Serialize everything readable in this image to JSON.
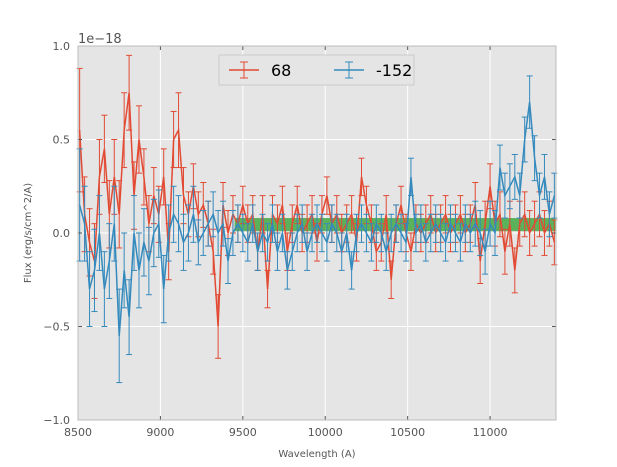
{
  "chart_data": {
    "type": "line",
    "title": "",
    "xlabel": "Wavelength (A)",
    "ylabel": "Flux (erg/s/cm^2/A)",
    "y_offset_label": "1e−18",
    "xlim": [
      8500,
      11400
    ],
    "ylim": [
      -1.0,
      1.0
    ],
    "grid": true,
    "legend_position": "top-center",
    "x_ticks": [
      8500,
      9000,
      9500,
      10000,
      10500,
      11000
    ],
    "x_tick_labels": [
      "8500",
      "9000",
      "9500",
      "10000",
      "10500",
      "11000"
    ],
    "y_ticks": [
      -1.0,
      -0.5,
      0.0,
      0.5,
      1.0
    ],
    "y_tick_labels": [
      "−1.0",
      "−0.5",
      "0.0",
      "0.5",
      "1.0"
    ],
    "band": {
      "x_start": 9450,
      "x_end": 11400,
      "y_low": 0.01,
      "y_high": 0.08,
      "color": "#2ca02c"
    },
    "x": [
      8510,
      8540,
      8570,
      8600,
      8630,
      8660,
      8690,
      8720,
      8750,
      8780,
      8810,
      8840,
      8870,
      8900,
      8930,
      8960,
      8990,
      9020,
      9050,
      9080,
      9110,
      9140,
      9170,
      9200,
      9230,
      9260,
      9290,
      9320,
      9350,
      9380,
      9410,
      9440,
      9470,
      9500,
      9530,
      9560,
      9590,
      9620,
      9650,
      9680,
      9710,
      9740,
      9770,
      9800,
      9830,
      9860,
      9890,
      9920,
      9950,
      9980,
      10010,
      10040,
      10070,
      10100,
      10130,
      10160,
      10190,
      10220,
      10250,
      10280,
      10310,
      10340,
      10370,
      10400,
      10430,
      10460,
      10490,
      10520,
      10550,
      10580,
      10610,
      10640,
      10670,
      10700,
      10730,
      10760,
      10790,
      10820,
      10850,
      10880,
      10910,
      10940,
      10970,
      11000,
      11030,
      11060,
      11090,
      11120,
      11150,
      11180,
      11210,
      11240,
      11270,
      11300,
      11330,
      11360,
      11390
    ],
    "series": [
      {
        "name": "68",
        "color": "#e24a33",
        "values": [
          0.55,
          0.1,
          -0.05,
          -0.15,
          0.3,
          0.45,
          0.1,
          0.3,
          0.1,
          0.55,
          0.75,
          0.2,
          0.5,
          0.3,
          0.05,
          0.2,
          0.1,
          0.3,
          -0.1,
          0.5,
          0.55,
          0.2,
          0.1,
          0.25,
          0.1,
          0.15,
          0.05,
          -0.1,
          -0.5,
          0.15,
          0.0,
          0.1,
          0.05,
          0.15,
          0.05,
          0.1,
          -0.1,
          0.1,
          -0.3,
          0.1,
          0.05,
          0.15,
          -0.1,
          0.05,
          0.15,
          0.0,
          0.05,
          0.1,
          -0.05,
          0.1,
          0.2,
          0.05,
          0.1,
          0.0,
          0.05,
          0.1,
          -0.05,
          0.3,
          0.15,
          0.05,
          -0.1,
          -0.05,
          0.1,
          -0.25,
          0.05,
          0.15,
          0.0,
          -0.1,
          0.05,
          0.0,
          0.05,
          0.1,
          0.0,
          0.05,
          0.1,
          0.0,
          0.05,
          0.1,
          0.0,
          0.05,
          0.15,
          -0.15,
          0.05,
          0.25,
          0.05,
          0.1,
          -0.1,
          0.05,
          -0.2,
          0.05,
          0.1,
          0.0,
          0.05,
          0.1,
          0.0,
          0.05,
          -0.05
        ],
        "errors": [
          0.33,
          0.2,
          0.18,
          0.2,
          0.2,
          0.18,
          0.18,
          0.2,
          0.18,
          0.2,
          0.2,
          0.18,
          0.18,
          0.15,
          0.15,
          0.15,
          0.15,
          0.15,
          0.15,
          0.15,
          0.2,
          0.15,
          0.12,
          0.12,
          0.12,
          0.12,
          0.12,
          0.12,
          0.17,
          0.12,
          0.12,
          0.1,
          0.1,
          0.1,
          0.1,
          0.1,
          0.1,
          0.1,
          0.1,
          0.1,
          0.1,
          0.1,
          0.1,
          0.1,
          0.1,
          0.1,
          0.1,
          0.1,
          0.1,
          0.1,
          0.1,
          0.1,
          0.1,
          0.1,
          0.1,
          0.1,
          0.1,
          0.1,
          0.1,
          0.1,
          0.1,
          0.1,
          0.1,
          0.1,
          0.1,
          0.1,
          0.1,
          0.1,
          0.1,
          0.1,
          0.1,
          0.1,
          0.1,
          0.1,
          0.1,
          0.1,
          0.1,
          0.1,
          0.1,
          0.1,
          0.12,
          0.12,
          0.12,
          0.12,
          0.12,
          0.12,
          0.12,
          0.12,
          0.12,
          0.12,
          0.12,
          0.12,
          0.12,
          0.12,
          0.12,
          0.12,
          0.12
        ]
      },
      {
        "name": "-152",
        "color": "#348abd",
        "values": [
          0.15,
          0.05,
          -0.3,
          -0.2,
          0.0,
          -0.3,
          -0.15,
          0.05,
          -0.55,
          -0.2,
          -0.45,
          0.0,
          -0.2,
          -0.05,
          -0.15,
          0.0,
          0.05,
          -0.3,
          0.0,
          0.1,
          0.05,
          -0.05,
          0.0,
          0.1,
          -0.05,
          0.0,
          0.05,
          0.1,
          0.0,
          0.05,
          -0.15,
          0.0,
          0.05,
          0.0,
          -0.05,
          0.05,
          -0.1,
          0.0,
          -0.05,
          0.05,
          -0.1,
          0.0,
          -0.2,
          -0.1,
          0.0,
          0.05,
          -0.1,
          0.0,
          0.05,
          0.0,
          -0.05,
          0.05,
          0.0,
          -0.1,
          0.0,
          -0.2,
          0.0,
          0.05,
          0.0,
          -0.05,
          0.05,
          0.0,
          -0.1,
          0.0,
          0.05,
          0.0,
          -0.05,
          0.3,
          0.0,
          0.05,
          -0.05,
          0.0,
          0.05,
          0.0,
          -0.05,
          0.05,
          0.0,
          -0.05,
          0.05,
          0.0,
          0.05,
          0.0,
          -0.1,
          0.05,
          0.0,
          0.35,
          0.2,
          0.25,
          0.3,
          0.2,
          0.5,
          0.7,
          0.4,
          0.2,
          0.3,
          0.1,
          0.2
        ],
        "errors": [
          0.3,
          0.2,
          0.2,
          0.22,
          0.2,
          0.2,
          0.2,
          0.2,
          0.25,
          0.2,
          0.2,
          0.2,
          0.2,
          0.18,
          0.18,
          0.18,
          0.18,
          0.18,
          0.15,
          0.15,
          0.15,
          0.15,
          0.15,
          0.15,
          0.12,
          0.12,
          0.12,
          0.12,
          0.12,
          0.12,
          0.12,
          0.12,
          0.1,
          0.1,
          0.1,
          0.1,
          0.1,
          0.1,
          0.1,
          0.1,
          0.1,
          0.1,
          0.1,
          0.1,
          0.1,
          0.1,
          0.1,
          0.1,
          0.1,
          0.1,
          0.1,
          0.1,
          0.1,
          0.1,
          0.1,
          0.1,
          0.1,
          0.1,
          0.1,
          0.1,
          0.1,
          0.1,
          0.1,
          0.1,
          0.1,
          0.1,
          0.1,
          0.1,
          0.1,
          0.1,
          0.1,
          0.1,
          0.1,
          0.1,
          0.1,
          0.1,
          0.1,
          0.1,
          0.1,
          0.1,
          0.12,
          0.12,
          0.12,
          0.12,
          0.12,
          0.12,
          0.12,
          0.12,
          0.12,
          0.12,
          0.12,
          0.14,
          0.12,
          0.12,
          0.12,
          0.12,
          0.12
        ]
      }
    ]
  }
}
